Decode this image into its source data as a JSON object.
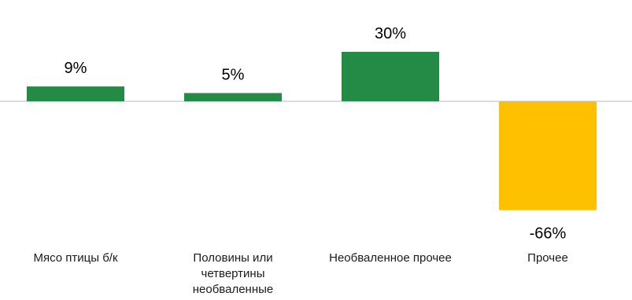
{
  "chart_data": {
    "type": "bar",
    "categories": [
      [
        "Мясо птицы б/к"
      ],
      [
        "Половины или",
        "четвертины",
        "необваленные"
      ],
      [
        "Необваленное прочее"
      ],
      [
        "Прочее"
      ]
    ],
    "values": [
      9,
      5,
      30,
      -66
    ],
    "value_labels": [
      "9%",
      "5%",
      "30%",
      "-66%"
    ],
    "colors": {
      "positive": "#238b45",
      "negative": "#ffc000",
      "baseline": "#d0d0d0"
    },
    "grid": false,
    "legend": "none"
  }
}
